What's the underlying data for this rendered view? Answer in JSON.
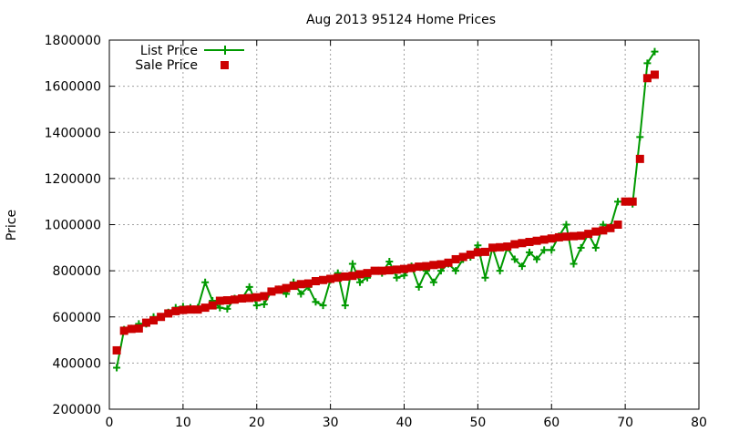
{
  "chart_data": {
    "type": "line",
    "title": "Aug 2013 95124 Home Prices",
    "xlabel": "",
    "ylabel": "Price",
    "xlim": [
      0,
      80
    ],
    "ylim": [
      200000,
      1800000
    ],
    "x_ticks": [
      0,
      10,
      20,
      30,
      40,
      50,
      60,
      70,
      80
    ],
    "y_ticks": [
      200000,
      400000,
      600000,
      800000,
      1000000,
      1200000,
      1400000,
      1600000,
      1800000
    ],
    "x_tick_labels": [
      "0",
      "10",
      "20",
      "30",
      "40",
      "50",
      "60",
      "70",
      "80"
    ],
    "y_tick_labels": [
      "200000",
      "400000",
      "600000",
      "800000",
      "1000000",
      "1200000",
      "1400000",
      "1600000",
      "1800000"
    ],
    "grid": true,
    "legend_position": "top-left",
    "series": [
      {
        "name": "List Price",
        "style": "line-with-plus-markers",
        "color": "#009900",
        "x": [
          1,
          2,
          3,
          4,
          5,
          6,
          7,
          8,
          9,
          10,
          11,
          12,
          13,
          14,
          15,
          16,
          17,
          18,
          19,
          20,
          21,
          22,
          23,
          24,
          25,
          26,
          27,
          28,
          29,
          30,
          31,
          32,
          33,
          34,
          35,
          36,
          37,
          38,
          39,
          40,
          41,
          42,
          43,
          44,
          45,
          46,
          47,
          48,
          49,
          50,
          51,
          52,
          53,
          54,
          55,
          56,
          57,
          58,
          59,
          60,
          61,
          62,
          63,
          64,
          65,
          66,
          67,
          68,
          69,
          70,
          71,
          72,
          73,
          74
        ],
        "values": [
          380000,
          545000,
          550000,
          570000,
          570000,
          600000,
          600000,
          620000,
          640000,
          645000,
          640000,
          640000,
          750000,
          670000,
          640000,
          635000,
          680000,
          680000,
          730000,
          650000,
          655000,
          710000,
          720000,
          700000,
          750000,
          700000,
          730000,
          665000,
          650000,
          760000,
          790000,
          650000,
          830000,
          750000,
          770000,
          800000,
          790000,
          840000,
          770000,
          780000,
          820000,
          730000,
          800000,
          750000,
          800000,
          830000,
          800000,
          850000,
          860000,
          910000,
          770000,
          900000,
          800000,
          900000,
          850000,
          820000,
          880000,
          850000,
          890000,
          890000,
          950000,
          1000000,
          830000,
          900000,
          960000,
          900000,
          1000000,
          990000,
          1100000,
          1100000,
          1090000,
          1380000,
          1700000,
          1750000
        ]
      },
      {
        "name": "Sale Price",
        "style": "square-markers",
        "color": "#cc0000",
        "x": [
          1,
          2,
          3,
          4,
          5,
          6,
          7,
          8,
          9,
          10,
          11,
          12,
          13,
          14,
          15,
          16,
          17,
          18,
          19,
          20,
          21,
          22,
          23,
          24,
          25,
          26,
          27,
          28,
          29,
          30,
          31,
          32,
          33,
          34,
          35,
          36,
          37,
          38,
          39,
          40,
          41,
          42,
          43,
          44,
          45,
          46,
          47,
          48,
          49,
          50,
          51,
          52,
          53,
          54,
          55,
          56,
          57,
          58,
          59,
          60,
          61,
          62,
          63,
          64,
          65,
          66,
          67,
          68,
          69,
          70,
          71,
          72,
          73,
          74
        ],
        "values": [
          455000,
          540000,
          548000,
          550000,
          575000,
          585000,
          600000,
          615000,
          625000,
          630000,
          632000,
          632000,
          640000,
          650000,
          670000,
          672000,
          675000,
          680000,
          682000,
          685000,
          690000,
          710000,
          718000,
          725000,
          735000,
          742000,
          745000,
          755000,
          760000,
          765000,
          770000,
          775000,
          778000,
          785000,
          790000,
          800000,
          800000,
          802000,
          805000,
          808000,
          812000,
          818000,
          820000,
          825000,
          828000,
          835000,
          850000,
          860000,
          870000,
          880000,
          882000,
          900000,
          902000,
          905000,
          915000,
          920000,
          925000,
          930000,
          935000,
          940000,
          945000,
          948000,
          950000,
          952000,
          960000,
          970000,
          975000,
          985000,
          1000000,
          1100000,
          1100000,
          1285000,
          1635000,
          1650000
        ]
      }
    ]
  }
}
